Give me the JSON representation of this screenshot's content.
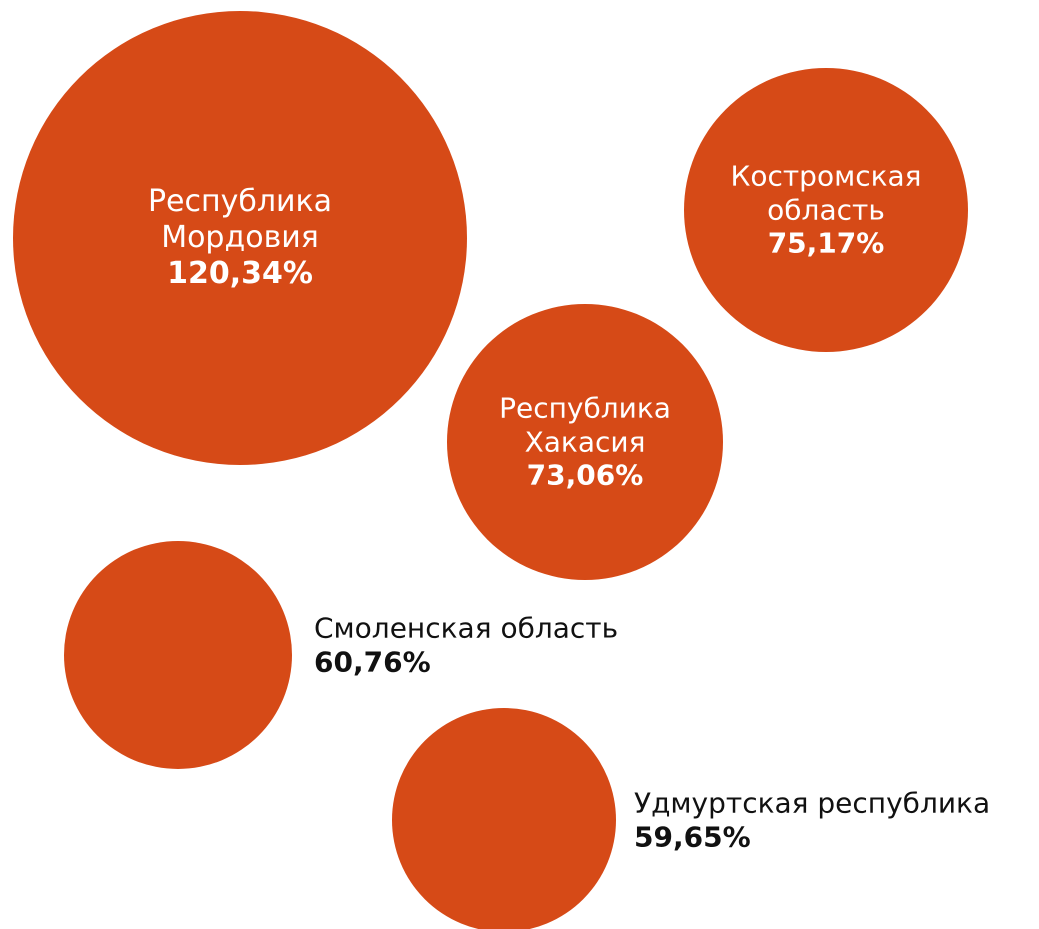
{
  "colors": {
    "bubble": "#D64A17",
    "inside_text": "#ffffff",
    "outside_text": "#111111",
    "background": "#ffffff"
  },
  "chart_data": {
    "type": "bubble",
    "unit": "%",
    "items": [
      {
        "label": "Республика Мордовия",
        "label_lines": [
          "Республика",
          "Мордовия"
        ],
        "value": 120.34,
        "value_label": "120,34%"
      },
      {
        "label": "Костромская область",
        "label_lines": [
          "Костромская",
          "область"
        ],
        "value": 75.17,
        "value_label": "75,17%"
      },
      {
        "label": "Республика Хакасия",
        "label_lines": [
          "Республика",
          "Хакасия"
        ],
        "value": 73.06,
        "value_label": "73,06%"
      },
      {
        "label": "Смоленская область",
        "label_lines": [
          "Смоленская область"
        ],
        "value": 60.76,
        "value_label": "60,76%"
      },
      {
        "label": "Удмуртская республика",
        "label_lines": [
          "Удмуртская республика"
        ],
        "value": 59.65,
        "value_label": "59,65%"
      }
    ]
  }
}
